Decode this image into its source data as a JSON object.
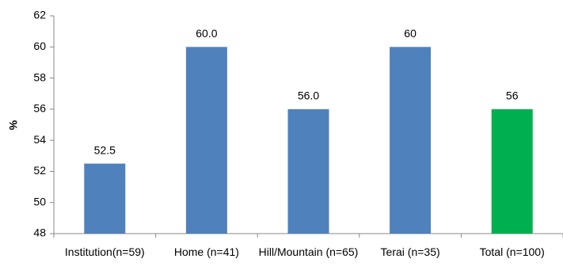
{
  "chart_data": {
    "type": "bar",
    "y_label": "%",
    "categories": [
      "Institution(n=59)",
      "Home (n=41)",
      "Hill/Mountain (n=65)",
      "Terai (n=35)",
      "Total (n=100)"
    ],
    "values": [
      52.5,
      60.0,
      56.0,
      60,
      56
    ],
    "value_labels": [
      "52.5",
      "60.0",
      "56.0",
      "60",
      "56"
    ],
    "colors": [
      "#4f81bd",
      "#4f81bd",
      "#4f81bd",
      "#4f81bd",
      "#00b050"
    ],
    "ylim": [
      48,
      62
    ],
    "yticks": [
      48,
      50,
      52,
      54,
      56,
      58,
      60,
      62
    ],
    "grid": false
  }
}
